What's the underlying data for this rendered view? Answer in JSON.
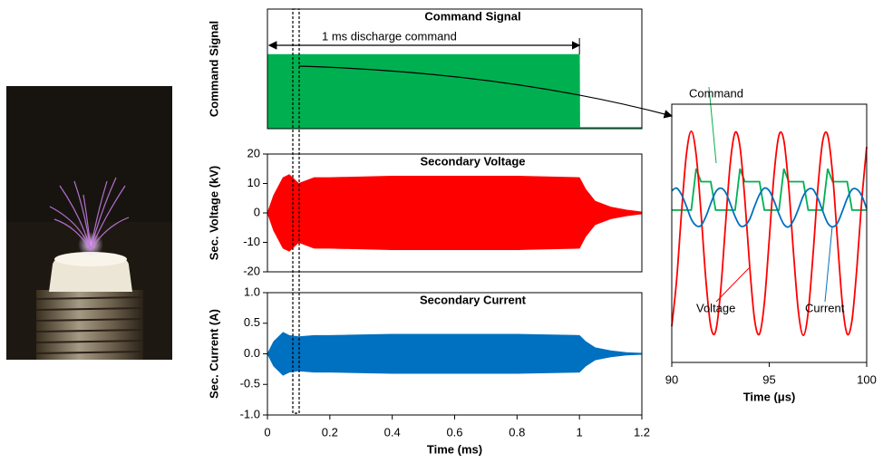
{
  "chart_data": [
    {
      "type": "band",
      "title": "Command Signal",
      "ylabel": "Command Signal",
      "annotation": "1 ms discharge command",
      "color": "#00b050",
      "xlim": [
        0,
        1.2
      ],
      "ylim": [
        0,
        1
      ],
      "x": [
        0,
        0.001,
        1.0,
        1.001,
        1.2
      ],
      "high": [
        0,
        0.62,
        0.62,
        0.01,
        0.01
      ],
      "low": [
        0,
        0,
        0,
        0,
        0
      ]
    },
    {
      "type": "band",
      "title": "Secondary Voltage",
      "ylabel": "Sec. Voltage (kV)",
      "color": "#ff0000",
      "xlim": [
        0,
        1.2
      ],
      "ylim": [
        -20,
        20
      ],
      "yticks": [
        -20,
        -10,
        0,
        10,
        20
      ],
      "x": [
        0,
        0.02,
        0.05,
        0.07,
        0.1,
        0.15,
        0.2,
        0.4,
        0.6,
        0.8,
        1.0,
        1.02,
        1.05,
        1.1,
        1.15,
        1.2
      ],
      "high": [
        0,
        6,
        12,
        13,
        10,
        12,
        12,
        12.5,
        12.5,
        12.5,
        12,
        8,
        4,
        2,
        1,
        0.3
      ],
      "low": [
        0,
        -6,
        -12,
        -13,
        -10,
        -12,
        -12,
        -12.5,
        -12.5,
        -12.5,
        -12,
        -8,
        -4,
        -2,
        -1,
        -0.3
      ]
    },
    {
      "type": "band",
      "title": "Secondary Current",
      "ylabel": "Sec. Current (A)",
      "xlabel": "Time (ms)",
      "color": "#0070c0",
      "xlim": [
        0,
        1.2
      ],
      "ylim": [
        -1,
        1
      ],
      "yticks": [
        {
          "value": -1,
          "label": "-1.0"
        },
        {
          "value": -0.5,
          "label": "-0.5"
        },
        {
          "value": 0,
          "label": "0.0"
        },
        {
          "value": 0.5,
          "label": "0.5"
        },
        {
          "value": 1,
          "label": "1.0"
        }
      ],
      "xticks": [
        0,
        0.2,
        0.4,
        0.6,
        0.8,
        1,
        1.2
      ],
      "x": [
        0,
        0.02,
        0.05,
        0.07,
        0.1,
        0.15,
        0.2,
        0.4,
        0.6,
        0.8,
        1.0,
        1.02,
        1.05,
        1.1,
        1.15,
        1.2
      ],
      "high": [
        0,
        0.2,
        0.35,
        0.3,
        0.28,
        0.3,
        0.3,
        0.32,
        0.32,
        0.32,
        0.3,
        0.2,
        0.1,
        0.05,
        0.02,
        0.01
      ],
      "low": [
        0,
        -0.2,
        -0.35,
        -0.3,
        -0.28,
        -0.3,
        -0.3,
        -0.32,
        -0.32,
        -0.32,
        -0.3,
        -0.2,
        -0.1,
        -0.05,
        -0.02,
        -0.01
      ]
    },
    {
      "type": "line",
      "xlabel": "Time (μs)",
      "xlim": [
        90,
        100
      ],
      "ylim": [
        -1,
        1
      ],
      "xticks": [
        90,
        95,
        100
      ],
      "x": [
        90,
        90.25,
        90.5,
        90.75,
        91,
        91.25,
        91.5,
        91.75,
        92,
        92.25,
        92.5,
        92.75,
        93,
        93.25,
        93.5,
        93.75,
        94,
        94.25,
        94.5,
        94.75,
        95,
        95.25,
        95.5,
        95.75,
        96,
        96.25,
        96.5,
        96.75,
        97,
        97.25,
        97.5,
        97.75,
        98,
        98.25,
        98.5,
        98.75,
        99,
        99.25,
        99.5,
        99.75,
        100
      ],
      "series": [
        {
          "name": "Command",
          "color": "#00b050",
          "smooth": false,
          "values": [
            0.18,
            0.18,
            0.18,
            0.18,
            0.18,
            0.5,
            0.4,
            0.4,
            0.4,
            0.18,
            0.18,
            0.18,
            0.18,
            0.18,
            0.5,
            0.4,
            0.4,
            0.4,
            0.4,
            0.18,
            0.18,
            0.18,
            0.18,
            0.5,
            0.4,
            0.4,
            0.4,
            0.4,
            0.18,
            0.18,
            0.18,
            0.18,
            0.5,
            0.4,
            0.4,
            0.4,
            0.4,
            0.18,
            0.18,
            0.18,
            0.18
          ]
        },
        {
          "name": "Voltage",
          "color": "#ff0000",
          "smooth": true,
          "values": [
            -0.72,
            -0.36,
            0.16,
            0.61,
            0.79,
            0.61,
            0.16,
            -0.36,
            -0.72,
            -0.76,
            -0.46,
            0.05,
            0.54,
            0.78,
            0.67,
            0.26,
            -0.26,
            -0.67,
            -0.78,
            -0.54,
            -0.05,
            0.46,
            0.76,
            0.72,
            0.36,
            -0.16,
            -0.61,
            -0.79,
            -0.61,
            -0.16,
            0.36,
            0.72,
            0.76,
            0.46,
            -0.05,
            -0.54,
            -0.78,
            -0.67,
            -0.26,
            0.26,
            0.67
          ]
        },
        {
          "name": "Current",
          "color": "#0070c0",
          "smooth": true,
          "values": [
            0.33,
            0.35,
            0.3,
            0.21,
            0.11,
            0.06,
            0.06,
            0.13,
            0.23,
            0.32,
            0.35,
            0.32,
            0.23,
            0.13,
            0.06,
            0.06,
            0.11,
            0.21,
            0.3,
            0.35,
            0.33,
            0.25,
            0.15,
            0.07,
            0.05,
            0.1,
            0.19,
            0.29,
            0.34,
            0.34,
            0.27,
            0.17,
            0.08,
            0.05,
            0.08,
            0.17,
            0.27,
            0.34,
            0.34,
            0.29,
            0.19
          ]
        }
      ]
    }
  ]
}
